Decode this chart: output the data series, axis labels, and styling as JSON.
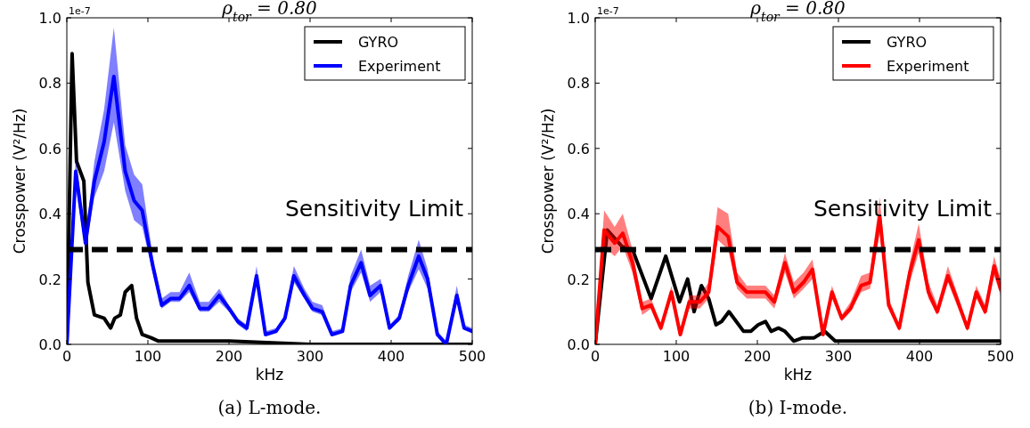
{
  "chart_data": [
    {
      "type": "line",
      "title": "ρ$_{tor}$ = 0.80",
      "xlabel": "kHz",
      "ylabel": "Crosspower (V²/Hz)",
      "annotations": [
        "1e-7",
        "(a) L-mode."
      ],
      "xlim": [
        0,
        500
      ],
      "xticks": [
        0,
        100,
        200,
        300,
        400,
        500
      ],
      "ylim": [
        0,
        1
      ],
      "yticks": [
        {
          "value": 0,
          "label": "0.0"
        },
        {
          "value": 0.2,
          "label": "0.2"
        },
        {
          "value": 0.4,
          "label": "0.4"
        },
        {
          "value": 0.6,
          "label": "0.6"
        },
        {
          "value": 0.8,
          "label": "0.8"
        },
        {
          "value": 1,
          "label": "1.0"
        }
      ],
      "grid": false,
      "legend": "top right",
      "line_style": "solid",
      "ref_lines": [
        {
          "axis": "y",
          "value": 0.29,
          "label": "Sensitivity Limit",
          "color": "#000000",
          "line_style": "dashed"
        }
      ],
      "series": [
        {
          "name": "GYRO",
          "color": "#000000",
          "x": [
            0,
            6.5,
            12,
            21,
            26,
            34,
            46,
            54,
            59,
            66,
            72,
            80,
            86,
            93,
            104,
            113,
            150,
            175,
            200,
            300,
            500
          ],
          "values": [
            0,
            0.89,
            0.56,
            0.5,
            0.19,
            0.09,
            0.08,
            0.05,
            0.08,
            0.09,
            0.16,
            0.18,
            0.08,
            0.03,
            0.02,
            0.01,
            0.01,
            0.01,
            0.01,
            0,
            0
          ]
        },
        {
          "name": "Experiment",
          "color": "#0000ff",
          "x": [
            0,
            11,
            23,
            34,
            46,
            58,
            72,
            83,
            93,
            106,
            117,
            128,
            139,
            151,
            164,
            175,
            188,
            200,
            211,
            222,
            234,
            245,
            258,
            269,
            280,
            293,
            303,
            315,
            327,
            340,
            350,
            363,
            374,
            387,
            398,
            410,
            421,
            434,
            445,
            457,
            468,
            481,
            490,
            500
          ],
          "values": [
            0,
            0.53,
            0.31,
            0.5,
            0.62,
            0.82,
            0.53,
            0.44,
            0.41,
            0.24,
            0.12,
            0.14,
            0.14,
            0.18,
            0.11,
            0.11,
            0.15,
            0.11,
            0.07,
            0.05,
            0.21,
            0.03,
            0.04,
            0.08,
            0.21,
            0.15,
            0.11,
            0.1,
            0.03,
            0.04,
            0.18,
            0.25,
            0.15,
            0.18,
            0.05,
            0.08,
            0.18,
            0.27,
            0.2,
            0.03,
            0,
            0.15,
            0.05,
            0.04
          ],
          "lower": [
            0,
            0.48,
            0.29,
            0.45,
            0.53,
            0.68,
            0.47,
            0.38,
            0.36,
            0.22,
            0.11,
            0.13,
            0.13,
            0.16,
            0.1,
            0.1,
            0.13,
            0.1,
            0.06,
            0.04,
            0.19,
            0.03,
            0.04,
            0.07,
            0.19,
            0.14,
            0.1,
            0.09,
            0.03,
            0.04,
            0.16,
            0.22,
            0.13,
            0.16,
            0.05,
            0.07,
            0.16,
            0.23,
            0.17,
            0.03,
            0,
            0.13,
            0.05,
            0.04
          ],
          "upper": [
            0,
            0.57,
            0.33,
            0.56,
            0.72,
            0.97,
            0.61,
            0.52,
            0.49,
            0.27,
            0.14,
            0.16,
            0.16,
            0.22,
            0.13,
            0.13,
            0.17,
            0.12,
            0.08,
            0.06,
            0.24,
            0.04,
            0.05,
            0.09,
            0.24,
            0.17,
            0.13,
            0.12,
            0.04,
            0.05,
            0.21,
            0.29,
            0.18,
            0.2,
            0.06,
            0.09,
            0.21,
            0.32,
            0.23,
            0.04,
            0.01,
            0.18,
            0.06,
            0.05
          ]
        }
      ]
    },
    {
      "type": "line",
      "title": "ρ$_{tor}$ = 0.80",
      "xlabel": "kHz",
      "ylabel": "Crosspower (V²/Hz)",
      "annotations": [
        "1e-7",
        "(b) I-mode."
      ],
      "xlim": [
        0,
        500
      ],
      "xticks": [
        0,
        100,
        200,
        300,
        400,
        500
      ],
      "ylim": [
        0,
        1
      ],
      "yticks": [
        {
          "value": 0,
          "label": "0.0"
        },
        {
          "value": 0.2,
          "label": "0.2"
        },
        {
          "value": 0.4,
          "label": "0.4"
        },
        {
          "value": 0.6,
          "label": "0.6"
        },
        {
          "value": 0.8,
          "label": "0.8"
        },
        {
          "value": 1,
          "label": "1.0"
        }
      ],
      "grid": false,
      "legend": "top right",
      "line_style": "solid",
      "ref_lines": [
        {
          "axis": "y",
          "value": 0.29,
          "label": "Sensitivity Limit",
          "color": "#000000",
          "line_style": "dashed"
        }
      ],
      "series": [
        {
          "name": "GYRO",
          "color": "#000000",
          "x": [
            0,
            15,
            33,
            46,
            69,
            87,
            104,
            114,
            122,
            131,
            140,
            149,
            156,
            165,
            183,
            192,
            201,
            210,
            217,
            226,
            234,
            245,
            256,
            270,
            283,
            296,
            310,
            346,
            382,
            417,
            500
          ],
          "values": [
            0,
            0.35,
            0.3,
            0.29,
            0.14,
            0.27,
            0.13,
            0.2,
            0.1,
            0.18,
            0.14,
            0.06,
            0.07,
            0.1,
            0.04,
            0.04,
            0.06,
            0.07,
            0.04,
            0.05,
            0.04,
            0.01,
            0.02,
            0.02,
            0.04,
            0.01,
            0.01,
            0.01,
            0.01,
            0.01,
            0.01
          ]
        },
        {
          "name": "Experiment",
          "color": "#ff0000",
          "x": [
            0,
            11,
            24,
            34,
            46,
            58,
            69,
            81,
            94,
            105,
            116,
            129,
            140,
            151,
            164,
            175,
            187,
            200,
            210,
            221,
            234,
            245,
            257,
            268,
            281,
            292,
            304,
            315,
            328,
            339,
            351,
            362,
            375,
            388,
            399,
            411,
            422,
            435,
            446,
            459,
            470,
            481,
            492,
            500
          ],
          "values": [
            0,
            0.35,
            0.31,
            0.34,
            0.25,
            0.11,
            0.12,
            0.05,
            0.16,
            0.03,
            0.13,
            0.13,
            0.16,
            0.36,
            0.33,
            0.19,
            0.16,
            0.16,
            0.16,
            0.13,
            0.25,
            0.16,
            0.19,
            0.23,
            0.03,
            0.16,
            0.08,
            0.11,
            0.18,
            0.19,
            0.39,
            0.12,
            0.05,
            0.22,
            0.32,
            0.16,
            0.1,
            0.21,
            0.14,
            0.05,
            0.16,
            0.1,
            0.24,
            0.17
          ],
          "lower": [
            0,
            0.3,
            0.27,
            0.3,
            0.22,
            0.09,
            0.11,
            0.04,
            0.14,
            0.03,
            0.11,
            0.11,
            0.14,
            0.32,
            0.29,
            0.17,
            0.14,
            0.14,
            0.14,
            0.11,
            0.22,
            0.14,
            0.17,
            0.2,
            0.03,
            0.14,
            0.07,
            0.1,
            0.16,
            0.17,
            0.34,
            0.11,
            0.04,
            0.19,
            0.28,
            0.14,
            0.09,
            0.19,
            0.12,
            0.04,
            0.14,
            0.09,
            0.21,
            0.15
          ],
          "upper": [
            0,
            0.41,
            0.36,
            0.4,
            0.29,
            0.13,
            0.14,
            0.06,
            0.18,
            0.04,
            0.15,
            0.15,
            0.19,
            0.42,
            0.4,
            0.22,
            0.18,
            0.18,
            0.18,
            0.15,
            0.28,
            0.19,
            0.22,
            0.26,
            0.04,
            0.18,
            0.09,
            0.13,
            0.21,
            0.22,
            0.45,
            0.14,
            0.06,
            0.25,
            0.37,
            0.19,
            0.12,
            0.24,
            0.16,
            0.06,
            0.18,
            0.12,
            0.27,
            0.2
          ]
        }
      ]
    }
  ]
}
